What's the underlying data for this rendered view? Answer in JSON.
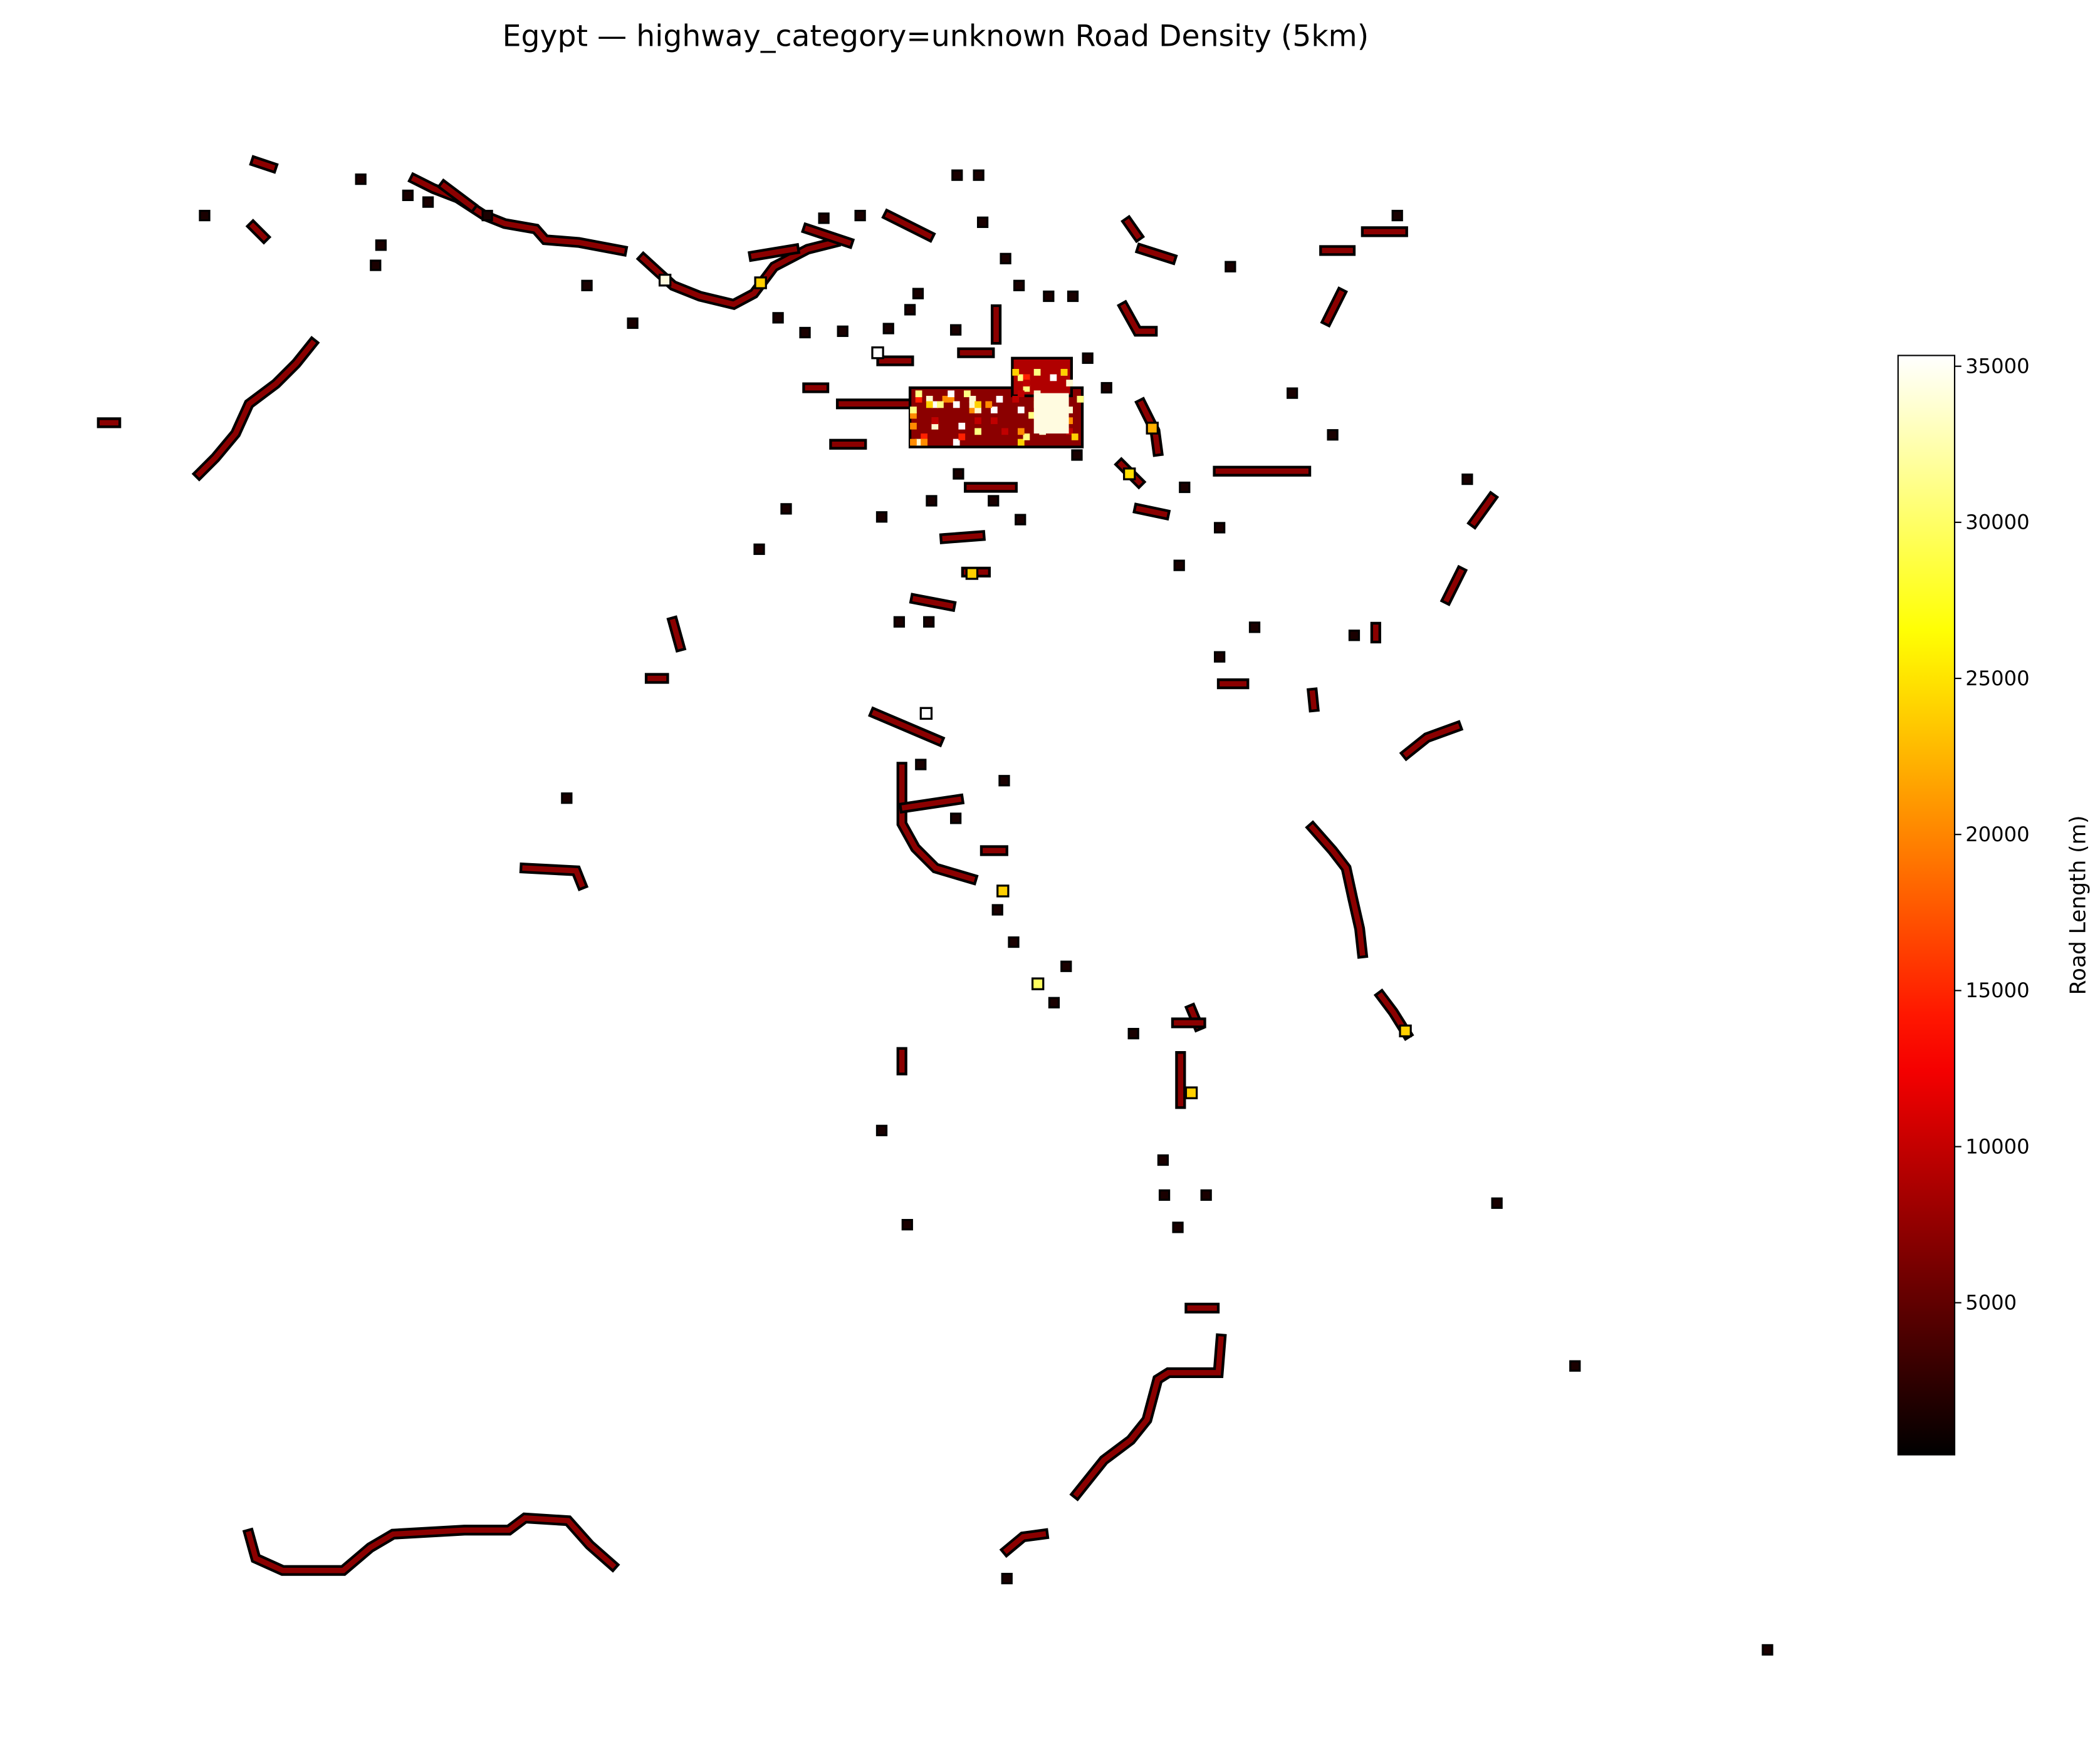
{
  "chart_data": {
    "type": "heatmap",
    "title": "Egypt — highway_category=unknown Road Density (5km)",
    "ylabel": "Road Length (m)",
    "colormap": "hot",
    "ylim": [
      129,
      35345
    ],
    "yticks": [
      5000,
      10000,
      15000,
      20000,
      25000,
      30000,
      35000
    ]
  }
}
